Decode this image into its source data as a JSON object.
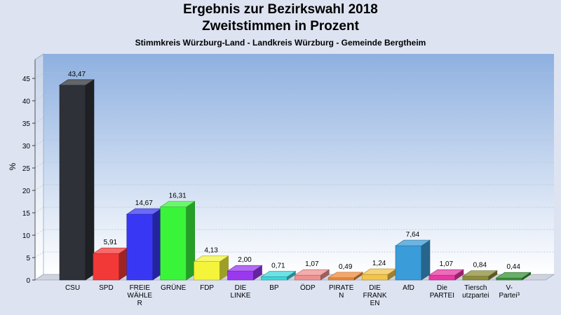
{
  "chart_data": {
    "type": "bar",
    "title": "Ergebnis zur Bezirkswahl 2018",
    "title_line2": "Zweitstimmen in Prozent",
    "subtitle": "Stimmkreis Würzburg-Land - Landkreis Würzburg - Gemeinde Bergtheim",
    "ylabel": "%",
    "xlabel": "",
    "ylim": [
      0,
      50
    ],
    "yticks": [
      "0",
      "5",
      "10",
      "15",
      "20",
      "25",
      "30",
      "35",
      "40",
      "45"
    ],
    "grid": true,
    "style": "3d",
    "categories": [
      {
        "lines": [
          "CSU"
        ]
      },
      {
        "lines": [
          "SPD"
        ]
      },
      {
        "lines": [
          "FREIE",
          "WÄHLE",
          "R"
        ]
      },
      {
        "lines": [
          "GRÜNE"
        ]
      },
      {
        "lines": [
          "FDP"
        ]
      },
      {
        "lines": [
          "DIE",
          "LINKE"
        ]
      },
      {
        "lines": [
          "BP"
        ]
      },
      {
        "lines": [
          "ÖDP"
        ]
      },
      {
        "lines": [
          "PIRATE",
          "N"
        ]
      },
      {
        "lines": [
          "DIE",
          "FRANK",
          "EN"
        ]
      },
      {
        "lines": [
          "AfD"
        ]
      },
      {
        "lines": [
          "Die",
          "PARTEI"
        ]
      },
      {
        "lines": [
          "Tiersch",
          "utzpartei"
        ]
      },
      {
        "lines": [
          "V-",
          "Partei³"
        ]
      }
    ],
    "values": [
      43.47,
      5.91,
      14.67,
      16.31,
      4.13,
      2.0,
      0.71,
      1.07,
      0.49,
      1.24,
      7.64,
      1.07,
      0.84,
      0.44
    ],
    "value_labels": [
      "43,47",
      "5,91",
      "14,67",
      "16,31",
      "4,13",
      "2,00",
      "0,71",
      "1,07",
      "0,49",
      "1,24",
      "7,64",
      "1,07",
      "0,84",
      "0,44"
    ],
    "colors": [
      "#2e3138",
      "#f33838",
      "#3838f4",
      "#3af43a",
      "#f4f43a",
      "#9a38f0",
      "#3ad8dc",
      "#f09090",
      "#f08a38",
      "#f4c44a",
      "#3a9cd8",
      "#e838a4",
      "#8c8c38",
      "#389438"
    ]
  }
}
